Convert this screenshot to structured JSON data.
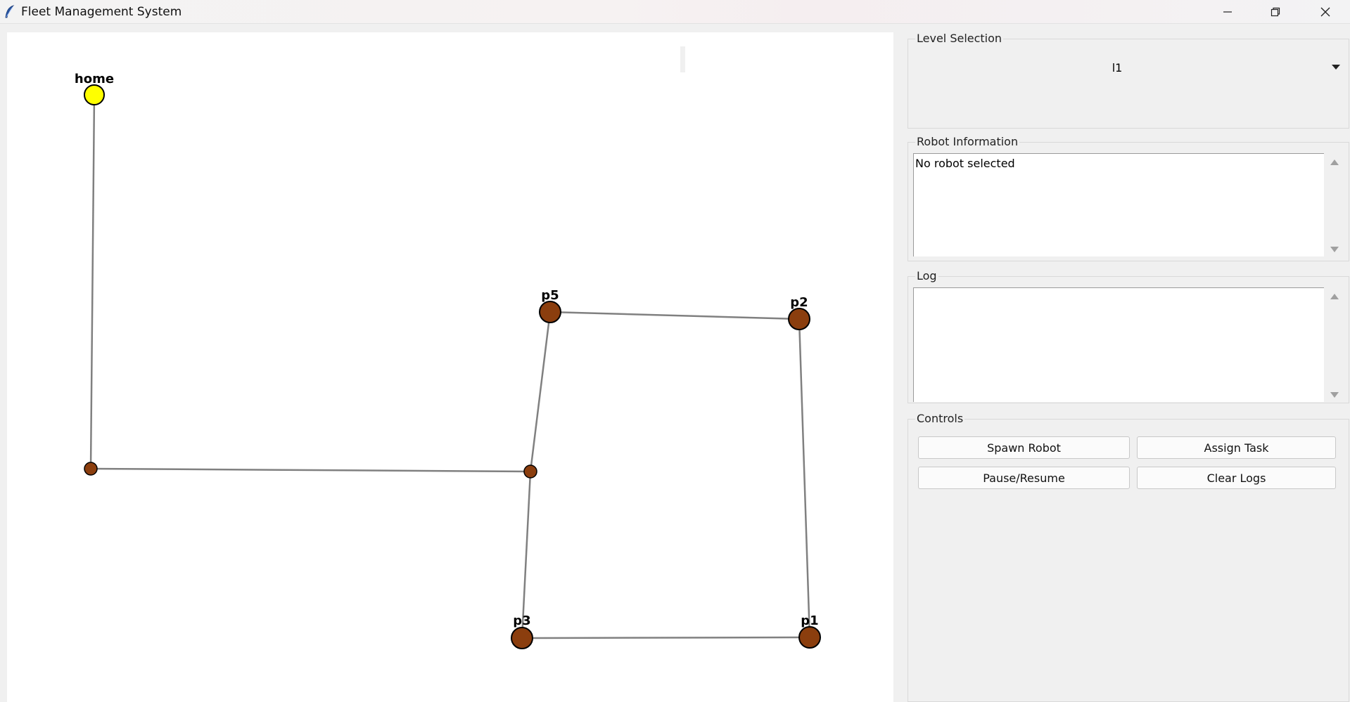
{
  "window": {
    "title": "Fleet Management System",
    "controls": [
      "minimize-icon",
      "restore-icon",
      "close-icon"
    ]
  },
  "map": {
    "colors": {
      "edge": "#808080",
      "node_fill": "#8b3e0e",
      "home_fill": "#ffff00",
      "outline": "#000000",
      "label": "#000000"
    },
    "nodes": [
      {
        "id": "home",
        "label": "home",
        "type": "home"
      },
      {
        "id": "j1",
        "label": "",
        "type": "junction"
      },
      {
        "id": "j2",
        "label": "",
        "type": "junction"
      },
      {
        "id": "p5",
        "label": "p5",
        "type": "station"
      },
      {
        "id": "p2",
        "label": "p2",
        "type": "station"
      },
      {
        "id": "p3",
        "label": "p3",
        "type": "station"
      },
      {
        "id": "p1",
        "label": "p1",
        "type": "station"
      }
    ],
    "edges": [
      [
        "home",
        "j1"
      ],
      [
        "j1",
        "j2"
      ],
      [
        "j2",
        "p5"
      ],
      [
        "p5",
        "p2"
      ],
      [
        "p2",
        "p1"
      ],
      [
        "p1",
        "p3"
      ],
      [
        "p3",
        "j2"
      ]
    ]
  },
  "level_selection": {
    "label": "Level Selection",
    "selected": "l1"
  },
  "robot_info": {
    "label": "Robot Information",
    "text": "No robot selected"
  },
  "log": {
    "label": "Log",
    "text": ""
  },
  "controls": {
    "label": "Controls",
    "spawn_robot": "Spawn Robot",
    "assign_task": "Assign Task",
    "pause_resume": "Pause/Resume",
    "clear_logs": "Clear Logs"
  }
}
